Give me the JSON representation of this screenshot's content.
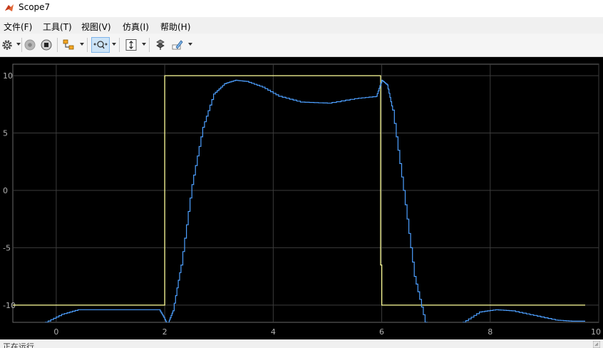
{
  "window": {
    "title": "Scope7"
  },
  "menu": [
    "文件(F)",
    "工具(T)",
    "视图(V)",
    "仿真(I)",
    "帮助(H)"
  ],
  "toolbar": {
    "icons": [
      "gear-icon",
      "run-icon",
      "stop-icon",
      "signal-selector-icon",
      "zoom-icon",
      "autoscale-icon",
      "style-icon",
      "highlight-icon"
    ]
  },
  "status": {
    "text": "正在运行"
  },
  "colors": {
    "plot_bg": "#000000",
    "grid": "#3c3c3c",
    "tick": "#b0b0b0",
    "series_reference": "#ffff99",
    "series_response": "#4d9fff"
  },
  "chart_data": {
    "type": "line",
    "xlim": [
      -0.8,
      10
    ],
    "ylim": [
      -11.5,
      11
    ],
    "xticks": [
      0,
      2,
      4,
      6,
      8,
      10
    ],
    "yticks": [
      10,
      5,
      0,
      -5,
      -10
    ],
    "xtick_labels": [
      "0",
      "2",
      "4",
      "6",
      "8",
      "10"
    ],
    "ytick_labels": [
      "10",
      "5",
      "0",
      "-5",
      "-10"
    ],
    "grid": true,
    "series": [
      {
        "x": [
          -0.8,
          2.0,
          2.0,
          5.98,
          5.98,
          6.0,
          6.0,
          9.75
        ],
        "y": [
          -10,
          -10,
          10,
          10,
          -6.5,
          -6.5,
          -10,
          -10
        ]
      },
      {
        "x": [
          -0.8,
          -0.5,
          -0.2,
          0.1,
          0.4,
          0.8,
          1.2,
          1.6,
          1.9,
          2.0,
          2.05,
          2.15,
          2.3,
          2.5,
          2.7,
          2.9,
          3.1,
          3.3,
          3.5,
          3.8,
          4.1,
          4.5,
          5.0,
          5.5,
          5.9,
          6.0,
          6.1,
          6.2,
          6.4,
          6.6,
          6.8,
          7.0,
          7.2,
          7.5,
          7.8,
          8.1,
          8.4,
          8.8,
          9.2,
          9.5,
          9.75
        ],
        "y": [
          -13,
          -12.3,
          -11.5,
          -10.8,
          -10.4,
          -10.4,
          -10.4,
          -10.4,
          -10.4,
          -11.2,
          -11.7,
          -10.5,
          -6.5,
          0.5,
          5.5,
          8.4,
          9.3,
          9.6,
          9.5,
          9.0,
          8.2,
          7.7,
          7.6,
          8.0,
          8.2,
          9.6,
          9.2,
          7.0,
          0.0,
          -7.5,
          -11.5,
          -12.6,
          -12.5,
          -11.5,
          -10.6,
          -10.4,
          -10.5,
          -10.9,
          -11.3,
          -11.4,
          -11.4
        ]
      }
    ]
  }
}
